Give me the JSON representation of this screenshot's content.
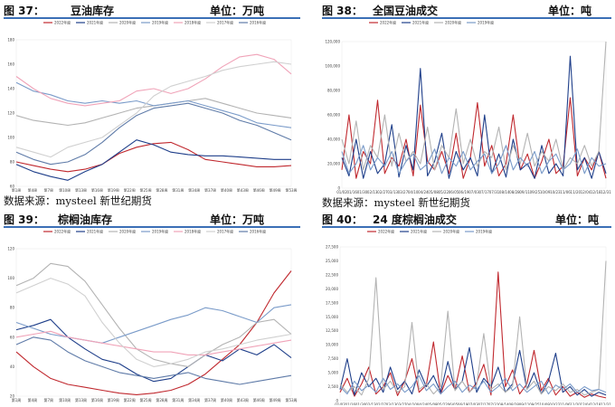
{
  "source_text": "数据来源：mysteel 新世纪期货",
  "panels": [
    {
      "fig": "图 37：",
      "title": "豆油库存",
      "unit": "单位：万吨"
    },
    {
      "fig": "图 38：",
      "title": "全国豆油成交",
      "unit": "单位：吨"
    },
    {
      "fig": "图 39：",
      "title": "棕榈油库存",
      "unit": "单位：万吨"
    },
    {
      "fig": "图 40：",
      "title": "24 度棕榈油成交",
      "unit": "单位：吨"
    }
  ],
  "chart_data": [
    {
      "type": "line",
      "title": "豆油库存",
      "ylim": [
        60,
        180
      ],
      "y_ticks": [
        60,
        80,
        100,
        120,
        140,
        160,
        180
      ],
      "x_ticks": [
        "第1周",
        "第4周",
        "第7周",
        "第10周",
        "第13周",
        "第16周",
        "第19周",
        "第22周",
        "第25周",
        "第28周",
        "第31周",
        "第34周",
        "第37周",
        "第40周",
        "第43周",
        "第46周",
        "第49周",
        "第53周"
      ],
      "series": [
        {
          "name": "2022年度",
          "color": "#c0282e",
          "values": [
            80,
            77,
            74,
            72,
            74,
            78,
            87,
            92,
            95,
            96,
            90,
            82,
            80,
            78,
            76,
            76,
            77
          ]
        },
        {
          "name": "2021年度",
          "color": "#1f3f8a",
          "values": [
            78,
            72,
            68,
            65,
            72,
            78,
            88,
            98,
            94,
            88,
            86,
            85,
            85,
            84,
            83,
            82,
            82
          ]
        },
        {
          "name": "2020年度",
          "color": "#b3b3b3",
          "values": [
            118,
            114,
            112,
            110,
            112,
            116,
            120,
            124,
            126,
            128,
            130,
            132,
            128,
            124,
            120,
            118,
            116
          ]
        },
        {
          "name": "2019年度",
          "color": "#7a9bc9",
          "values": [
            145,
            138,
            135,
            130,
            128,
            130,
            128,
            130,
            126,
            128,
            130,
            126,
            122,
            118,
            112,
            110,
            108
          ]
        },
        {
          "name": "2018年度",
          "color": "#f0a3b8",
          "values": [
            150,
            140,
            132,
            128,
            126,
            128,
            130,
            138,
            140,
            136,
            140,
            148,
            158,
            166,
            168,
            164,
            152
          ]
        },
        {
          "name": "2017年度",
          "color": "#d0d0d0",
          "values": [
            92,
            88,
            84,
            92,
            96,
            100,
            110,
            120,
            134,
            142,
            146,
            150,
            155,
            158,
            160,
            162,
            160
          ]
        },
        {
          "name": "2016年度",
          "color": "#5f7ba8",
          "values": [
            88,
            82,
            78,
            80,
            86,
            96,
            108,
            118,
            124,
            126,
            128,
            124,
            120,
            114,
            110,
            104,
            98
          ]
        }
      ]
    },
    {
      "type": "line",
      "title": "全国豆油成交",
      "ylim": [
        0,
        120000
      ],
      "y_ticks": [
        0,
        20000,
        40000,
        60000,
        80000,
        100000,
        120000
      ],
      "x_ticks": [
        "01/02",
        "01/16",
        "01/30",
        "02/13",
        "02/27",
        "03/13",
        "03/27",
        "04/10",
        "04/24",
        "05/08",
        "05/22",
        "06/05",
        "06/19",
        "07/03",
        "07/17",
        "07/31",
        "08/14",
        "08/28",
        "09/11",
        "09/25",
        "10/09",
        "10/23",
        "11/06",
        "11/20",
        "12/04",
        "12/18",
        "12/31"
      ],
      "series": [
        {
          "name": "2022年度",
          "color": "#c0282e",
          "values": [
            15000,
            60000,
            8000,
            30000,
            20000,
            72000,
            12000,
            25000,
            18000,
            40000,
            10000,
            68000,
            22000,
            15000,
            30000,
            12000,
            45000,
            8000,
            25000,
            70000,
            18000,
            35000,
            10000,
            20000,
            60000,
            15000,
            28000,
            8000,
            22000,
            40000,
            12000,
            18000,
            74000,
            10000,
            25000,
            15000,
            30000,
            8000
          ]
        },
        {
          "name": "2021年度",
          "color": "#1f3f8a",
          "values": [
            25000,
            10000,
            40000,
            8000,
            30000,
            12000,
            20000,
            52000,
            9000,
            35000,
            15000,
            98000,
            10000,
            22000,
            45000,
            8000,
            30000,
            15000,
            25000,
            10000,
            60000,
            12000,
            28000,
            9000,
            40000,
            15000,
            20000,
            8000,
            35000,
            12000,
            20000,
            10000,
            108000,
            15000,
            25000,
            8000,
            30000,
            12000
          ]
        },
        {
          "name": "2020年度",
          "color": "#b3b3b3",
          "values": [
            40000,
            20000,
            55000,
            15000,
            35000,
            25000,
            60000,
            18000,
            45000,
            22000,
            30000,
            20000,
            50000,
            15000,
            35000,
            25000,
            65000,
            20000,
            40000,
            18000,
            30000,
            25000,
            50000,
            15000,
            35000,
            20000,
            45000,
            18000,
            30000,
            22000,
            40000,
            15000,
            25000,
            20000,
            35000,
            18000,
            30000,
            120000
          ]
        },
        {
          "name": "2019年度",
          "color": "#7a9bc9",
          "values": [
            30000,
            12000,
            20000,
            35000,
            15000,
            25000,
            18000,
            30000,
            12000,
            22000,
            28000,
            15000,
            20000,
            32000,
            12000,
            25000,
            18000,
            30000,
            15000,
            22000,
            28000,
            12000,
            20000,
            35000,
            15000,
            25000,
            18000,
            30000,
            12000,
            22000,
            28000,
            15000,
            20000,
            32000,
            12000,
            25000,
            18000,
            20000
          ]
        }
      ]
    },
    {
      "type": "line",
      "title": "棕榈油库存",
      "ylim": [
        20,
        120
      ],
      "y_ticks": [
        20,
        40,
        60,
        80,
        100,
        120
      ],
      "x_ticks": [
        "第1周",
        "第4周",
        "第7周",
        "第10周",
        "第13周",
        "第16周",
        "第19周",
        "第22周",
        "第25周",
        "第28周",
        "第31周",
        "第34周",
        "第37周",
        "第40周",
        "第43周",
        "第46周",
        "第49周",
        "第53周"
      ],
      "series": [
        {
          "name": "2022年度",
          "color": "#c0282e",
          "values": [
            50,
            40,
            32,
            28,
            26,
            24,
            22,
            21,
            22,
            24,
            28,
            35,
            45,
            55,
            70,
            90,
            105
          ]
        },
        {
          "name": "2021年度",
          "color": "#1f3f8a",
          "values": [
            65,
            68,
            72,
            60,
            52,
            45,
            42,
            35,
            30,
            32,
            40,
            48,
            44,
            52,
            48,
            55,
            46
          ]
        },
        {
          "name": "2020年度",
          "color": "#b3b3b3",
          "values": [
            95,
            100,
            110,
            108,
            98,
            82,
            66,
            52,
            45,
            42,
            40,
            48,
            55,
            60,
            70,
            72,
            62
          ]
        },
        {
          "name": "2019年度",
          "color": "#7a9bc9",
          "values": [
            70,
            66,
            62,
            60,
            58,
            56,
            60,
            64,
            68,
            72,
            75,
            80,
            78,
            74,
            70,
            80,
            82
          ]
        },
        {
          "name": "2018年度",
          "color": "#f0a3b8",
          "values": [
            60,
            62,
            64,
            60,
            58,
            56,
            54,
            52,
            50,
            50,
            48,
            48,
            50,
            52,
            54,
            56,
            58
          ]
        },
        {
          "name": "2017年度",
          "color": "#d0d0d0",
          "values": [
            90,
            95,
            100,
            96,
            88,
            70,
            56,
            45,
            40,
            42,
            45,
            50,
            52,
            55,
            58,
            60,
            62
          ]
        },
        {
          "name": "2016年度",
          "color": "#5f7ba8",
          "values": [
            55,
            60,
            58,
            50,
            44,
            40,
            36,
            34,
            32,
            34,
            36,
            32,
            30,
            28,
            30,
            32,
            34
          ]
        }
      ]
    },
    {
      "type": "line",
      "title": "24 度棕榈油成交",
      "ylim": [
        0,
        27500
      ],
      "y_ticks": [
        0,
        2500,
        5000,
        7500,
        10000,
        12500,
        15000,
        17500,
        20000,
        22500,
        25000,
        27500
      ],
      "x_ticks": [
        "01/02",
        "01/16",
        "01/30",
        "02/13",
        "02/27",
        "03/13",
        "03/27",
        "04/10",
        "04/24",
        "05/08",
        "05/22",
        "06/05",
        "06/19",
        "07/03",
        "07/17",
        "07/31",
        "08/14",
        "08/28",
        "09/11",
        "09/25",
        "10/09",
        "10/23",
        "11/06",
        "11/20",
        "12/04",
        "12/18",
        "12/31"
      ],
      "series": [
        {
          "name": "2022年度",
          "color": "#c0282e",
          "values": [
            1500,
            4000,
            800,
            3000,
            6000,
            1200,
            2500,
            5000,
            900,
            3500,
            7500,
            1500,
            2800,
            10500,
            1200,
            4500,
            2000,
            8000,
            1500,
            3200,
            6500,
            1000,
            23000,
            2500,
            5500,
            1200,
            3000,
            9000,
            1800,
            4000,
            1000,
            2500,
            800,
            1500,
            600,
            1200,
            800,
            500
          ]
        },
        {
          "name": "2021年度",
          "color": "#1f3f8a",
          "values": [
            2000,
            7500,
            1000,
            5000,
            2500,
            4000,
            1500,
            6000,
            2000,
            3500,
            1200,
            5500,
            2500,
            4500,
            1500,
            7000,
            2000,
            3500,
            9500,
            1500,
            4000,
            2500,
            6000,
            1500,
            3000,
            9000,
            2000,
            5000,
            1200,
            3500,
            8500,
            1500,
            2500,
            1000,
            2000,
            800,
            1500,
            1000
          ]
        },
        {
          "name": "2020年度",
          "color": "#b3b3b3",
          "values": [
            3000,
            1500,
            2500,
            1000,
            4000,
            22000,
            2000,
            3500,
            1500,
            2500,
            14000,
            2000,
            3000,
            1200,
            2500,
            16000,
            1800,
            3500,
            1500,
            2800,
            12000,
            2000,
            3000,
            1500,
            2500,
            15000,
            2000,
            3500,
            1200,
            2500,
            1800,
            3000,
            1500,
            2000,
            1000,
            1500,
            2000,
            25000
          ]
        },
        {
          "name": "2019年度",
          "color": "#7a9bc9",
          "values": [
            2500,
            1200,
            3500,
            1800,
            2800,
            1500,
            4000,
            2000,
            3000,
            1500,
            2500,
            4500,
            1800,
            3000,
            1200,
            2500,
            3500,
            1500,
            2800,
            2000,
            3500,
            1500,
            2500,
            4000,
            1800,
            3000,
            1500,
            2500,
            3500,
            1200,
            2800,
            2000,
            3000,
            1500,
            2500,
            1800,
            2000,
            1500
          ]
        }
      ]
    }
  ]
}
